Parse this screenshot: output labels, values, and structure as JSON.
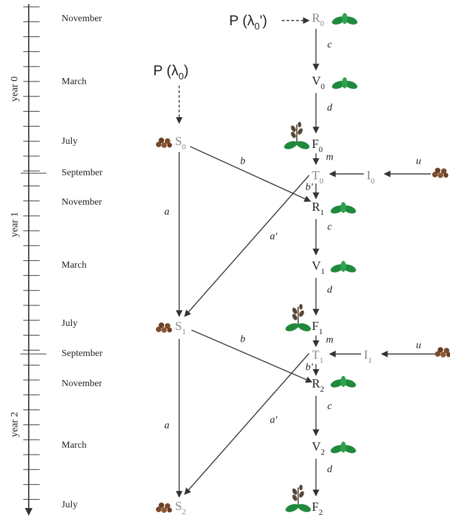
{
  "timeline": {
    "years": [
      "year 0",
      "year 1",
      "year 2"
    ],
    "months": [
      "November",
      "March",
      "July",
      "September",
      "November",
      "March",
      "July",
      "September",
      "November",
      "March",
      "July"
    ]
  },
  "nodes": [
    {
      "label": "P (λ",
      "sub": "0",
      "suffix": "')"
    },
    {
      "label": "P (λ",
      "sub": "0",
      "suffix": ")"
    },
    {
      "label": "R",
      "sub": "0"
    },
    {
      "label": "V",
      "sub": "0"
    },
    {
      "label": "F",
      "sub": "0"
    },
    {
      "label": "T",
      "sub": "0"
    },
    {
      "label": "R",
      "sub": "1"
    },
    {
      "label": "V",
      "sub": "1"
    },
    {
      "label": "F",
      "sub": "1"
    },
    {
      "label": "T",
      "sub": "1"
    },
    {
      "label": "R",
      "sub": "2"
    },
    {
      "label": "V",
      "sub": "2"
    },
    {
      "label": "F",
      "sub": "2"
    },
    {
      "label": "S",
      "sub": "0"
    },
    {
      "label": "S",
      "sub": "1"
    },
    {
      "label": "S",
      "sub": "2"
    },
    {
      "label": "I",
      "sub": "0"
    },
    {
      "label": "I",
      "sub": "1"
    }
  ],
  "edges": [
    "c",
    "d",
    "m",
    "b'",
    "c",
    "d",
    "m",
    "b'",
    "c",
    "d",
    "a",
    "b",
    "a'",
    "a",
    "b",
    "a'",
    "u",
    "u"
  ]
}
